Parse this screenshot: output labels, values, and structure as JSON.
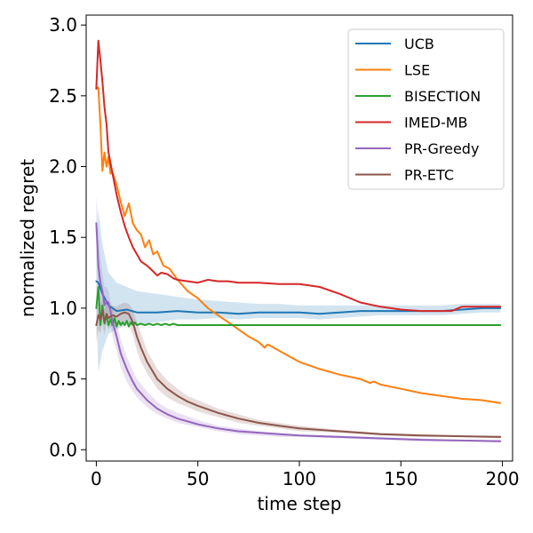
{
  "chart_data": {
    "type": "line",
    "title": "",
    "xlabel": "time step",
    "ylabel": "normalized regret",
    "xlim": [
      -5,
      205
    ],
    "ylim": [
      -0.08,
      3.07
    ],
    "xticks": [
      0,
      50,
      100,
      150,
      200
    ],
    "yticks": [
      0.0,
      0.5,
      1.0,
      1.5,
      2.0,
      2.5,
      3.0
    ],
    "xtick_labels": [
      "0",
      "50",
      "100",
      "150",
      "200"
    ],
    "ytick_labels": [
      "0.0",
      "0.5",
      "1.0",
      "1.5",
      "2.0",
      "2.5",
      "3.0"
    ],
    "grid": false,
    "legend_position": "top-right",
    "series": [
      {
        "name": "UCB",
        "color": "#1f77b4",
        "x": [
          0,
          1,
          3,
          6,
          10,
          15,
          20,
          30,
          40,
          50,
          60,
          70,
          80,
          90,
          100,
          110,
          120,
          130,
          140,
          150,
          160,
          170,
          180,
          190,
          199
        ],
        "values": [
          1.19,
          1.18,
          1.1,
          1.02,
          0.98,
          0.99,
          0.97,
          0.97,
          0.98,
          0.97,
          0.97,
          0.96,
          0.97,
          0.97,
          0.97,
          0.96,
          0.97,
          0.98,
          0.98,
          0.98,
          0.98,
          0.98,
          0.99,
          1.0,
          1.0
        ],
        "band_upper": [
          1.35,
          1.7,
          1.45,
          1.25,
          1.18,
          1.15,
          1.12,
          1.1,
          1.08,
          1.06,
          1.05,
          1.04,
          1.03,
          1.03,
          1.02,
          1.02,
          1.02,
          1.02,
          1.02,
          1.02,
          1.02,
          1.02,
          1.03,
          1.03,
          1.03
        ],
        "band_lower": [
          1.0,
          0.55,
          0.7,
          0.82,
          0.85,
          0.88,
          0.88,
          0.9,
          0.92,
          0.92,
          0.93,
          0.92,
          0.93,
          0.93,
          0.93,
          0.92,
          0.93,
          0.94,
          0.95,
          0.95,
          0.95,
          0.95,
          0.96,
          0.97,
          0.97
        ]
      },
      {
        "name": "LSE",
        "color": "#ff7f0e",
        "x": [
          0,
          1,
          2,
          3,
          4,
          5,
          6,
          7,
          8,
          10,
          12,
          14,
          16,
          18,
          20,
          22,
          24,
          26,
          28,
          30,
          33,
          36,
          40,
          45,
          50,
          55,
          60,
          65,
          70,
          75,
          80,
          83,
          84,
          85,
          90,
          100,
          110,
          120,
          130,
          135,
          136,
          137,
          140,
          150,
          160,
          170,
          180,
          190,
          199
        ],
        "values": [
          2.55,
          2.56,
          2.3,
          1.97,
          2.1,
          2.0,
          2.07,
          1.95,
          1.96,
          1.87,
          1.75,
          1.65,
          1.74,
          1.6,
          1.55,
          1.52,
          1.43,
          1.48,
          1.38,
          1.4,
          1.3,
          1.28,
          1.2,
          1.12,
          1.07,
          1.0,
          0.95,
          0.9,
          0.85,
          0.8,
          0.76,
          0.72,
          0.74,
          0.74,
          0.7,
          0.62,
          0.57,
          0.53,
          0.5,
          0.47,
          0.48,
          0.48,
          0.46,
          0.43,
          0.4,
          0.38,
          0.36,
          0.35,
          0.33
        ]
      },
      {
        "name": "BISECTION",
        "color": "#2ca02c",
        "x": [
          0,
          1,
          2,
          3,
          4,
          5,
          6,
          7,
          8,
          9,
          10,
          11,
          12,
          13,
          14,
          15,
          16,
          17,
          18,
          19,
          20,
          22,
          24,
          26,
          28,
          30,
          32,
          34,
          36,
          38,
          40,
          45,
          50,
          60,
          70,
          80,
          90,
          100,
          120,
          140,
          160,
          180,
          199
        ],
        "values": [
          1.0,
          1.15,
          0.88,
          1.02,
          0.89,
          0.95,
          0.88,
          0.92,
          0.88,
          0.93,
          0.87,
          0.91,
          0.88,
          0.9,
          0.88,
          0.91,
          0.87,
          0.9,
          0.88,
          0.9,
          0.88,
          0.89,
          0.88,
          0.89,
          0.88,
          0.89,
          0.88,
          0.89,
          0.88,
          0.89,
          0.88,
          0.88,
          0.88,
          0.88,
          0.88,
          0.88,
          0.88,
          0.88,
          0.88,
          0.88,
          0.88,
          0.88,
          0.88
        ]
      },
      {
        "name": "IMED-MB",
        "color": "#d62728",
        "x": [
          0,
          1,
          2,
          3,
          4,
          5,
          6,
          8,
          10,
          12,
          14,
          16,
          18,
          20,
          22,
          25,
          28,
          30,
          32,
          35,
          38,
          40,
          45,
          50,
          55,
          60,
          65,
          70,
          80,
          90,
          100,
          110,
          120,
          130,
          140,
          150,
          160,
          170,
          175,
          180,
          190,
          199
        ],
        "values": [
          2.55,
          2.89,
          2.75,
          2.6,
          2.42,
          2.3,
          2.1,
          1.95,
          1.8,
          1.68,
          1.58,
          1.5,
          1.43,
          1.38,
          1.33,
          1.3,
          1.26,
          1.23,
          1.25,
          1.24,
          1.21,
          1.2,
          1.19,
          1.18,
          1.2,
          1.19,
          1.19,
          1.18,
          1.18,
          1.17,
          1.17,
          1.15,
          1.1,
          1.04,
          1.01,
          0.99,
          0.98,
          0.98,
          0.98,
          1.01,
          1.01,
          1.01
        ]
      },
      {
        "name": "PR-Greedy",
        "color": "#9467bd",
        "x": [
          0,
          1,
          2,
          3,
          4,
          5,
          6,
          7,
          8,
          10,
          12,
          15,
          18,
          20,
          25,
          30,
          35,
          40,
          50,
          60,
          70,
          80,
          90,
          100,
          120,
          140,
          160,
          180,
          199
        ],
        "values": [
          1.6,
          1.3,
          1.18,
          1.12,
          1.02,
          1.05,
          1.04,
          0.98,
          0.9,
          0.8,
          0.68,
          0.57,
          0.48,
          0.43,
          0.35,
          0.29,
          0.25,
          0.22,
          0.18,
          0.15,
          0.13,
          0.12,
          0.11,
          0.1,
          0.09,
          0.08,
          0.07,
          0.065,
          0.06
        ],
        "band_upper": [
          1.8,
          1.55,
          1.35,
          1.25,
          1.15,
          1.15,
          1.12,
          1.05,
          1.0,
          0.9,
          0.78,
          0.66,
          0.56,
          0.5,
          0.41,
          0.34,
          0.29,
          0.26,
          0.21,
          0.17,
          0.15,
          0.13,
          0.12,
          0.11,
          0.1,
          0.09,
          0.08,
          0.07,
          0.07
        ],
        "band_lower": [
          1.4,
          1.05,
          1.0,
          0.98,
          0.9,
          0.95,
          0.95,
          0.9,
          0.8,
          0.7,
          0.58,
          0.48,
          0.41,
          0.37,
          0.3,
          0.25,
          0.22,
          0.19,
          0.16,
          0.13,
          0.11,
          0.1,
          0.09,
          0.09,
          0.08,
          0.07,
          0.06,
          0.06,
          0.05
        ]
      },
      {
        "name": "PR-ETC",
        "color": "#8c564b",
        "x": [
          0,
          1,
          2,
          3,
          4,
          5,
          6,
          8,
          10,
          12,
          14,
          16,
          18,
          20,
          22,
          25,
          30,
          35,
          40,
          45,
          50,
          60,
          70,
          80,
          90,
          100,
          120,
          140,
          160,
          180,
          199
        ],
        "values": [
          0.88,
          0.95,
          0.92,
          0.98,
          0.9,
          0.96,
          0.93,
          0.95,
          0.94,
          0.96,
          0.97,
          0.96,
          0.9,
          0.8,
          0.72,
          0.62,
          0.5,
          0.43,
          0.38,
          0.34,
          0.31,
          0.26,
          0.22,
          0.19,
          0.17,
          0.15,
          0.13,
          0.11,
          0.1,
          0.095,
          0.09
        ],
        "band_upper": [
          1.0,
          1.05,
          1.02,
          1.06,
          0.99,
          1.03,
          1.01,
          1.02,
          1.01,
          1.03,
          1.04,
          1.03,
          0.99,
          0.9,
          0.82,
          0.7,
          0.57,
          0.49,
          0.43,
          0.38,
          0.35,
          0.29,
          0.25,
          0.21,
          0.19,
          0.17,
          0.14,
          0.12,
          0.11,
          0.1,
          0.1
        ],
        "band_lower": [
          0.76,
          0.85,
          0.82,
          0.9,
          0.81,
          0.89,
          0.85,
          0.88,
          0.87,
          0.89,
          0.9,
          0.89,
          0.81,
          0.7,
          0.62,
          0.54,
          0.43,
          0.37,
          0.33,
          0.3,
          0.27,
          0.23,
          0.19,
          0.17,
          0.15,
          0.13,
          0.12,
          0.1,
          0.09,
          0.09,
          0.08
        ]
      }
    ]
  }
}
